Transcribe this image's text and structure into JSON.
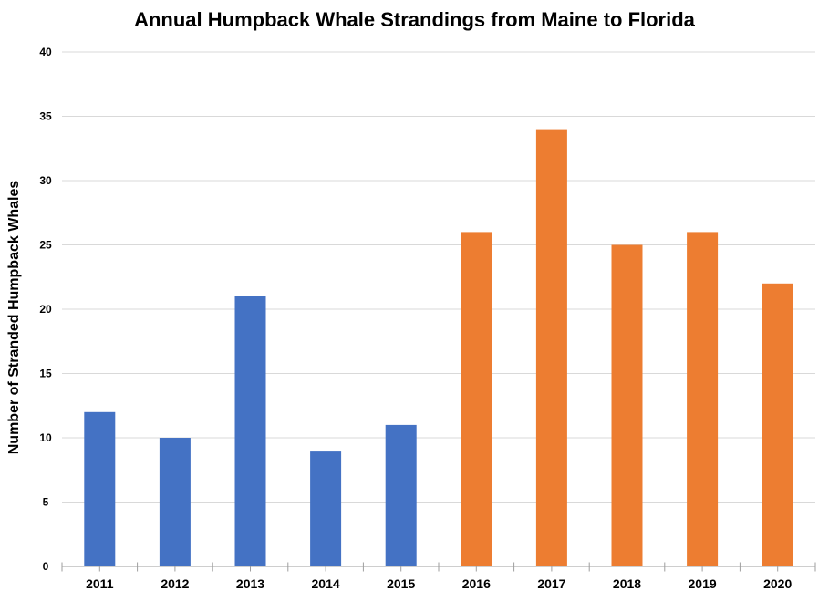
{
  "chart_data": {
    "type": "bar",
    "title": "Annual Humpback Whale Strandings from Maine to Florida",
    "xlabel": "",
    "ylabel": "Number of Stranded Humpback Whales",
    "categories": [
      "2011",
      "2012",
      "2013",
      "2014",
      "2015",
      "2016",
      "2017",
      "2018",
      "2019",
      "2020"
    ],
    "values": [
      12,
      10,
      21,
      9,
      11,
      26,
      34,
      25,
      26,
      22
    ],
    "bar_colors": [
      "#4472C4",
      "#4472C4",
      "#4472C4",
      "#4472C4",
      "#4472C4",
      "#ED7D31",
      "#ED7D31",
      "#ED7D31",
      "#ED7D31",
      "#ED7D31"
    ],
    "ylim": [
      0,
      40
    ],
    "ytick_step": 5,
    "grid": "horizontal-only",
    "legend": "none",
    "styles": {
      "gridline_color": "#D9D9D9",
      "axis_color": "#9E9E9E",
      "text_color": "#000000",
      "background": "#FFFFFF"
    }
  }
}
